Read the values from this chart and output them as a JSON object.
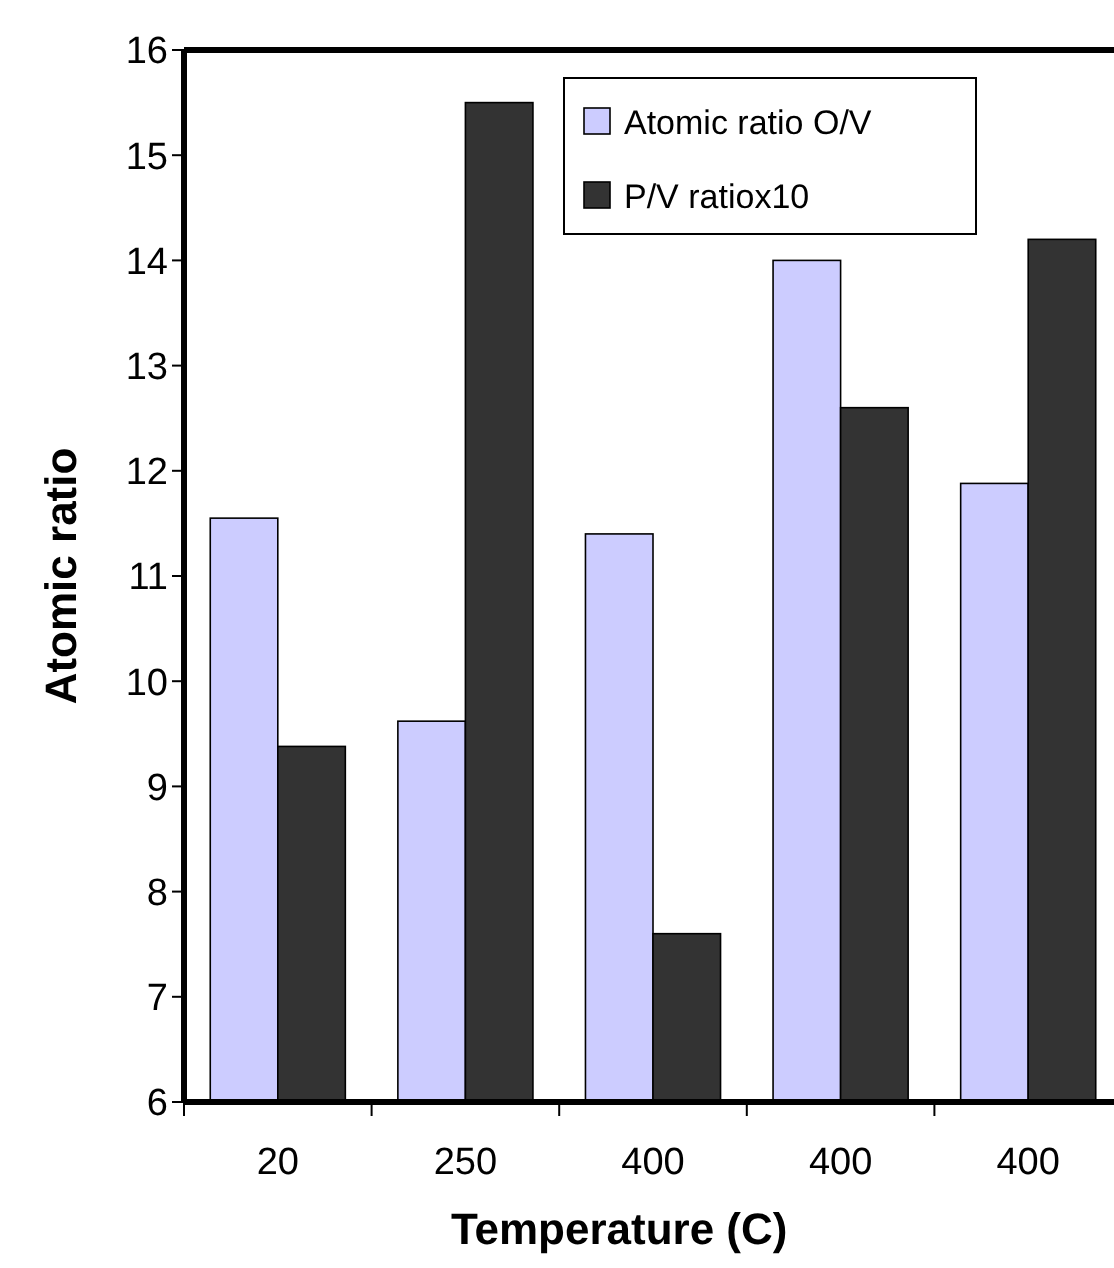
{
  "chart_data": {
    "type": "bar",
    "xlabel": "Temperature (C)",
    "ylabel": "Atomic ratio",
    "categories": [
      "20",
      "250",
      "400",
      "400",
      "400"
    ],
    "series": [
      {
        "name": "Atomic ratio O/V",
        "color": "#ccccff",
        "values": [
          11.55,
          9.62,
          11.4,
          14.0,
          11.88
        ]
      },
      {
        "name": "P/V ratiox10",
        "color": "#333333",
        "values": [
          9.38,
          15.5,
          7.6,
          12.6,
          14.2
        ]
      }
    ],
    "ylim": [
      6,
      16
    ],
    "yticks": [
      6,
      7,
      8,
      9,
      10,
      11,
      12,
      13,
      14,
      15,
      16
    ],
    "legend": "top right",
    "grid": false
  }
}
